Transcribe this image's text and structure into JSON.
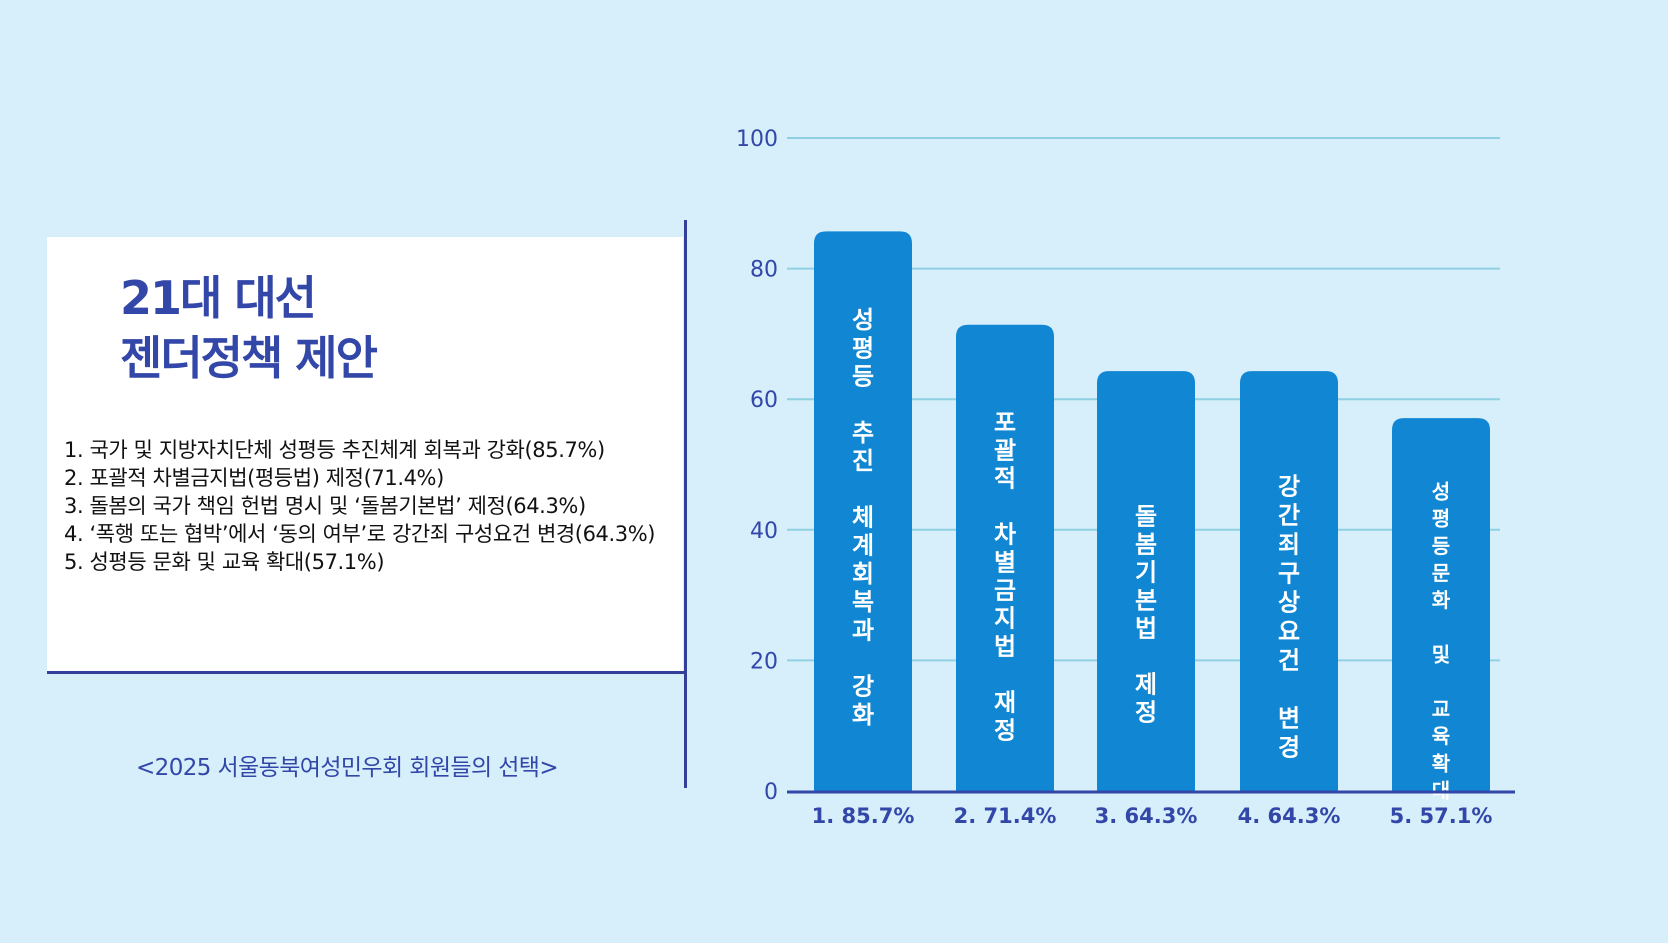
{
  "title": {
    "line1": "21대 대선",
    "line2": "젠더정책 제안"
  },
  "proposals": [
    "1. 국가 및 지방자치단체 성평등 추진체계 회복과 강화(85.7%)",
    "2. 포괄적 차별금지법(평등법) 제정(71.4%)",
    "3. 돌봄의 국가 책임 헌법 명시 및 ‘돌봄기본법’ 제정(64.3%)",
    "4. ‘폭행 또는 협박’에서 ‘동의 여부’로 강간죄 구성요건 변경(64.3%)",
    "5. 성평등 문화 및 교육 확대(57.1%)"
  ],
  "source": "<2025 서울동북여성민우회 회원들의 선택>",
  "colors": {
    "background": "#d6effb",
    "bar": "#1186d2",
    "accent": "#3247a8",
    "grid": "#8fd0e2"
  },
  "chart_data": {
    "type": "bar",
    "categories": [
      "1. 85.7%",
      "2. 71.4%",
      "3. 64.3%",
      "4. 64.3%",
      "5. 57.1%"
    ],
    "values": [
      85.7,
      71.4,
      64.3,
      64.3,
      57.1
    ],
    "bar_labels": [
      [
        "성",
        "평",
        "등",
        "",
        "추",
        "진",
        "",
        "체",
        "계",
        "회",
        "복",
        "과",
        "",
        "강",
        "화"
      ],
      [
        "포",
        "괄",
        "적",
        "",
        "차",
        "별",
        "금",
        "지",
        "법",
        "",
        "재",
        "정"
      ],
      [
        "돌",
        "봄",
        "기",
        "본",
        "법",
        "",
        "제",
        "정"
      ],
      [
        "강",
        "간",
        "죄",
        "구",
        "상",
        "요",
        "건",
        "",
        "변",
        "경"
      ],
      [
        "성",
        "평",
        "등",
        "문",
        "화",
        "",
        "및",
        "",
        "교",
        "육",
        "확",
        "대"
      ]
    ],
    "yticks": [
      0,
      20,
      40,
      60,
      80,
      100
    ],
    "ylim": [
      0,
      100
    ],
    "grid": true
  }
}
